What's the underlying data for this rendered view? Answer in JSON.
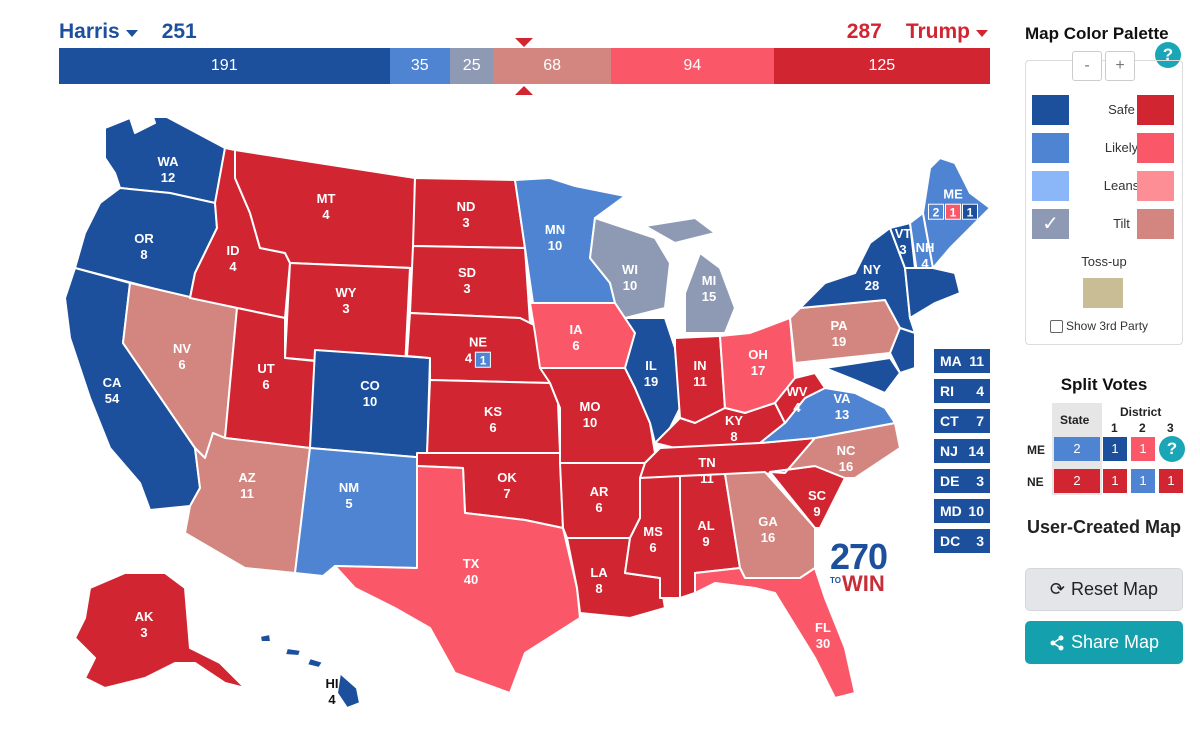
{
  "header": {
    "dem_name": "Harris",
    "dem_score": "251",
    "rep_name": "Trump",
    "rep_score": "287"
  },
  "ev_bar": [
    {
      "value": "191",
      "color": "#1c4f9c",
      "width": 191
    },
    {
      "value": "35",
      "color": "#4e84d1",
      "width": 35
    },
    {
      "value": "25",
      "color": "#8e9ab4",
      "width": 25
    },
    {
      "value": "68",
      "color": "#d3857f",
      "width": 68
    },
    {
      "value": "94",
      "color": "#fa5868",
      "width": 94
    },
    {
      "value": "125",
      "color": "#d22532",
      "width": 125
    }
  ],
  "colors": {
    "safe_d": "#1c4f9c",
    "likely_d": "#4e84d1",
    "leans_d": "#8bb6f8",
    "tilt": "#8e9ab4",
    "safe_r": "#d22532",
    "likely_r": "#fa5868",
    "leans_r": "#fe8e96",
    "tilt_r": "#d3857f",
    "tossup": "#c9bd95"
  },
  "states": [
    {
      "abbr": "WA",
      "ev": "12"
    },
    {
      "abbr": "OR",
      "ev": "8"
    },
    {
      "abbr": "CA",
      "ev": "54"
    },
    {
      "abbr": "NV",
      "ev": "6"
    },
    {
      "abbr": "ID",
      "ev": "4"
    },
    {
      "abbr": "MT",
      "ev": "4"
    },
    {
      "abbr": "WY",
      "ev": "3"
    },
    {
      "abbr": "UT",
      "ev": "6"
    },
    {
      "abbr": "AZ",
      "ev": "11"
    },
    {
      "abbr": "CO",
      "ev": "10"
    },
    {
      "abbr": "NM",
      "ev": "5"
    },
    {
      "abbr": "ND",
      "ev": "3"
    },
    {
      "abbr": "SD",
      "ev": "3"
    },
    {
      "abbr": "NE",
      "ev": "4"
    },
    {
      "abbr": "KS",
      "ev": "6"
    },
    {
      "abbr": "OK",
      "ev": "7"
    },
    {
      "abbr": "TX",
      "ev": "40"
    },
    {
      "abbr": "MN",
      "ev": "10"
    },
    {
      "abbr": "IA",
      "ev": "6"
    },
    {
      "abbr": "MO",
      "ev": "10"
    },
    {
      "abbr": "AR",
      "ev": "6"
    },
    {
      "abbr": "LA",
      "ev": "8"
    },
    {
      "abbr": "WI",
      "ev": "10"
    },
    {
      "abbr": "IL",
      "ev": "19"
    },
    {
      "abbr": "MI",
      "ev": "15"
    },
    {
      "abbr": "IN",
      "ev": "11"
    },
    {
      "abbr": "OH",
      "ev": "17"
    },
    {
      "abbr": "KY",
      "ev": "8"
    },
    {
      "abbr": "TN",
      "ev": "11"
    },
    {
      "abbr": "MS",
      "ev": "6"
    },
    {
      "abbr": "AL",
      "ev": "9"
    },
    {
      "abbr": "GA",
      "ev": "16"
    },
    {
      "abbr": "FL",
      "ev": "30"
    },
    {
      "abbr": "SC",
      "ev": "9"
    },
    {
      "abbr": "NC",
      "ev": "16"
    },
    {
      "abbr": "VA",
      "ev": "13"
    },
    {
      "abbr": "WV",
      "ev": "4"
    },
    {
      "abbr": "PA",
      "ev": "19"
    },
    {
      "abbr": "NY",
      "ev": "28"
    },
    {
      "abbr": "VT",
      "ev": "3"
    },
    {
      "abbr": "NH",
      "ev": "4"
    },
    {
      "abbr": "ME",
      "ev": ""
    },
    {
      "abbr": "AK",
      "ev": "3"
    },
    {
      "abbr": "HI",
      "ev": "4"
    }
  ],
  "me_districts": {
    "d1": "2",
    "d2": "1",
    "d3": "1"
  },
  "ne_district": "1",
  "northeast": [
    {
      "abbr": "MA",
      "ev": "11"
    },
    {
      "abbr": "RI",
      "ev": "4"
    },
    {
      "abbr": "CT",
      "ev": "7"
    },
    {
      "abbr": "NJ",
      "ev": "14"
    },
    {
      "abbr": "DE",
      "ev": "3"
    },
    {
      "abbr": "MD",
      "ev": "10"
    },
    {
      "abbr": "DC",
      "ev": "3"
    }
  ],
  "logo": {
    "num": "270",
    "to": "TO",
    "win": "WIN"
  },
  "palette": {
    "title": "Map Color Palette",
    "minus": "-",
    "plus": "+",
    "help": "?",
    "rows": [
      "Safe",
      "Likely",
      "Leans",
      "Tilt"
    ],
    "check": "✓",
    "tossup": "Toss-up",
    "third_party": "Show 3rd Party"
  },
  "split": {
    "title": "Split Votes",
    "state_hdr": "State",
    "district_hdr": "District",
    "cols": [
      "1",
      "2",
      "3"
    ],
    "me": {
      "label": "ME",
      "state": "2",
      "d": [
        "1",
        "1"
      ]
    },
    "ne": {
      "label": "NE",
      "state": "2",
      "d": [
        "1",
        "1",
        "1"
      ]
    },
    "help": "?"
  },
  "user_map": {
    "title": "User-Created Map",
    "reset": "Reset Map",
    "share": "Share Map"
  }
}
